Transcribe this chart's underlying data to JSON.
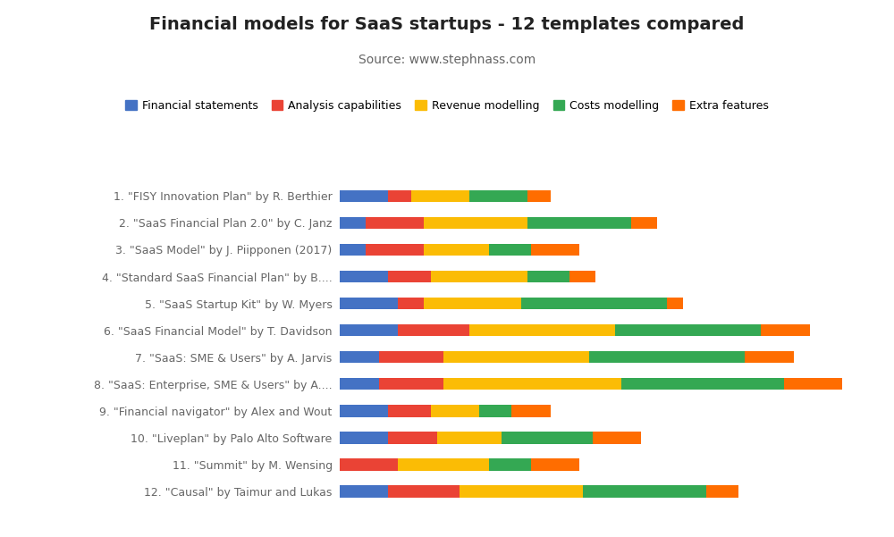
{
  "title": "Financial models for SaaS startups - 12 templates compared",
  "subtitle": "Source: www.stephnass.com",
  "categories": [
    "1. \"FISY Innovation Plan\" by R. Berthier",
    "2. \"SaaS Financial Plan 2.0\" by C. Janz",
    "3. \"SaaS Model\" by J. Piipponen (2017)",
    "4. \"Standard SaaS Financial Plan\" by B....",
    "5. \"SaaS Startup Kit\" by W. Myers",
    "6. \"SaaS Financial Model\" by T. Davidson",
    "7. \"SaaS: SME & Users\" by A. Jarvis",
    "8. \"SaaS: Enterprise, SME & Users\" by A....",
    "9. \"Financial navigator\" by Alex and Wout",
    "10. \"Liveplan\" by Palo Alto Software",
    "11. \"Summit\" by M. Wensing",
    "12. \"Causal\" by Taimur and Lukas"
  ],
  "series_labels": [
    "Financial statements",
    "Analysis capabilities",
    "Revenue modelling",
    "Costs modelling",
    "Extra features"
  ],
  "colors": [
    "#4472C4",
    "#EA4335",
    "#FBBC05",
    "#34A853",
    "#FF6D00"
  ],
  "data": [
    [
      1.5,
      0.7,
      1.8,
      1.8,
      0.7
    ],
    [
      0.8,
      1.8,
      3.2,
      3.2,
      0.8
    ],
    [
      0.8,
      1.8,
      2.0,
      1.3,
      1.5
    ],
    [
      1.5,
      1.3,
      3.0,
      1.3,
      0.8
    ],
    [
      1.8,
      0.8,
      3.0,
      4.5,
      0.5
    ],
    [
      1.8,
      2.2,
      4.5,
      4.5,
      1.5
    ],
    [
      1.2,
      2.0,
      4.5,
      4.8,
      1.5
    ],
    [
      1.2,
      2.0,
      5.5,
      5.0,
      1.8
    ],
    [
      1.5,
      1.3,
      1.5,
      1.0,
      1.2
    ],
    [
      1.5,
      1.5,
      2.0,
      2.8,
      1.5
    ],
    [
      0.0,
      1.8,
      2.8,
      1.3,
      1.5
    ],
    [
      1.5,
      2.2,
      3.8,
      3.8,
      1.0
    ]
  ],
  "background_color": "#ffffff",
  "figsize": [
    10.0,
    6.01
  ],
  "dpi": 100,
  "bar_height": 0.45,
  "xlim": 16,
  "title_fontsize": 14,
  "subtitle_fontsize": 10,
  "ytick_fontsize": 9,
  "legend_fontsize": 9
}
